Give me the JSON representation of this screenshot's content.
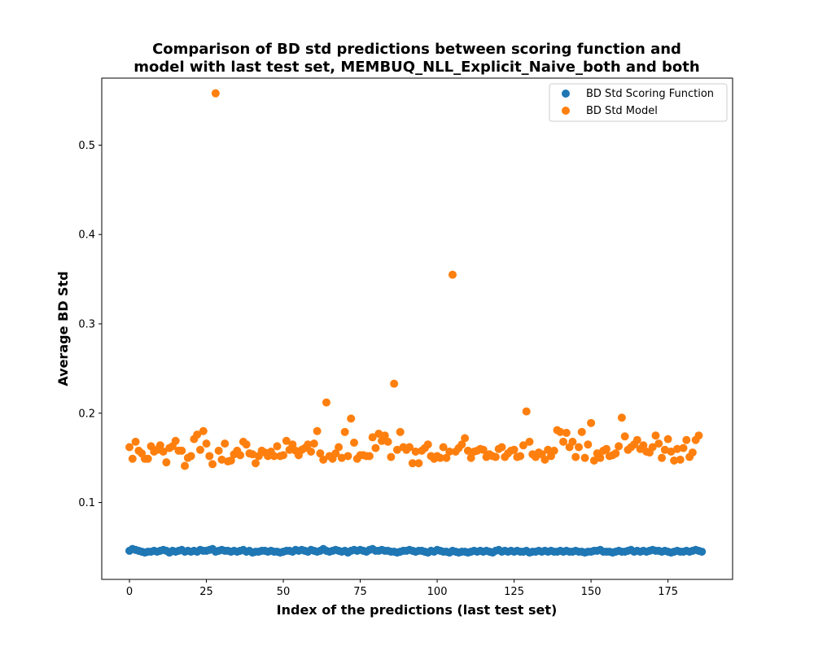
{
  "chart_data": {
    "type": "scatter",
    "title_lines": [
      "Comparison of BD std predictions between scoring function and",
      "model with last test set, MEMBUQ_NLL_Explicit_Naive_both and both"
    ],
    "xlabel": "Index of the predictions (last test set)",
    "ylabel": "Average BD Std",
    "xlim": [
      -9,
      196
    ],
    "ylim": [
      0.014,
      0.575
    ],
    "x_ticks": [
      0,
      25,
      50,
      75,
      100,
      125,
      150,
      175
    ],
    "y_ticks": [
      0.1,
      0.2,
      0.3,
      0.4,
      0.5
    ],
    "grid": false,
    "legend_position": "top-right",
    "series": [
      {
        "name": "BD Std Scoring Function",
        "color": "#1f77b4",
        "x_start": 0,
        "values": [
          0.046,
          0.048,
          0.047,
          0.046,
          0.045,
          0.044,
          0.045,
          0.045,
          0.046,
          0.045,
          0.046,
          0.047,
          0.046,
          0.044,
          0.046,
          0.045,
          0.046,
          0.047,
          0.045,
          0.046,
          0.045,
          0.046,
          0.045,
          0.047,
          0.046,
          0.046,
          0.047,
          0.048,
          0.045,
          0.046,
          0.047,
          0.046,
          0.046,
          0.045,
          0.046,
          0.045,
          0.046,
          0.047,
          0.045,
          0.046,
          0.044,
          0.045,
          0.045,
          0.046,
          0.046,
          0.045,
          0.046,
          0.045,
          0.045,
          0.044,
          0.045,
          0.046,
          0.046,
          0.045,
          0.047,
          0.046,
          0.047,
          0.046,
          0.045,
          0.047,
          0.046,
          0.045,
          0.046,
          0.048,
          0.046,
          0.045,
          0.046,
          0.047,
          0.046,
          0.045,
          0.046,
          0.044,
          0.046,
          0.047,
          0.046,
          0.047,
          0.046,
          0.045,
          0.047,
          0.048,
          0.046,
          0.046,
          0.047,
          0.046,
          0.046,
          0.045,
          0.045,
          0.044,
          0.045,
          0.046,
          0.046,
          0.047,
          0.046,
          0.045,
          0.046,
          0.046,
          0.045,
          0.044,
          0.046,
          0.045,
          0.047,
          0.046,
          0.045,
          0.045,
          0.044,
          0.046,
          0.045,
          0.044,
          0.045,
          0.045,
          0.044,
          0.045,
          0.046,
          0.045,
          0.046,
          0.045,
          0.046,
          0.045,
          0.044,
          0.046,
          0.047,
          0.045,
          0.046,
          0.045,
          0.046,
          0.045,
          0.046,
          0.045,
          0.045,
          0.046,
          0.044,
          0.045,
          0.045,
          0.046,
          0.045,
          0.046,
          0.045,
          0.046,
          0.045,
          0.045,
          0.046,
          0.045,
          0.046,
          0.045,
          0.045,
          0.046,
          0.045,
          0.045,
          0.044,
          0.045,
          0.045,
          0.046,
          0.046,
          0.047,
          0.045,
          0.045,
          0.045,
          0.044,
          0.045,
          0.046,
          0.045,
          0.045,
          0.046,
          0.047,
          0.045,
          0.046,
          0.045,
          0.046,
          0.045,
          0.046,
          0.047,
          0.046,
          0.046,
          0.045,
          0.046,
          0.045,
          0.044,
          0.045,
          0.046,
          0.045,
          0.045,
          0.046,
          0.045,
          0.046,
          0.047,
          0.046,
          0.045
        ]
      },
      {
        "name": "BD Std Model",
        "color": "#ff7f0e",
        "x_start": 0,
        "values": [
          0.162,
          0.149,
          0.168,
          0.158,
          0.155,
          0.149,
          0.149,
          0.163,
          0.157,
          0.159,
          0.164,
          0.157,
          0.145,
          0.161,
          0.163,
          0.169,
          0.158,
          0.158,
          0.141,
          0.15,
          0.152,
          0.171,
          0.176,
          0.159,
          0.18,
          0.166,
          0.152,
          0.143,
          0.558,
          0.158,
          0.148,
          0.166,
          0.146,
          0.147,
          0.154,
          0.158,
          0.153,
          0.168,
          0.165,
          0.155,
          0.154,
          0.144,
          0.152,
          0.158,
          0.156,
          0.152,
          0.157,
          0.152,
          0.163,
          0.152,
          0.153,
          0.169,
          0.159,
          0.165,
          0.158,
          0.153,
          0.159,
          0.161,
          0.165,
          0.157,
          0.166,
          0.18,
          0.155,
          0.148,
          0.212,
          0.152,
          0.149,
          0.155,
          0.162,
          0.15,
          0.179,
          0.152,
          0.194,
          0.167,
          0.149,
          0.153,
          0.153,
          0.152,
          0.152,
          0.173,
          0.161,
          0.177,
          0.169,
          0.175,
          0.168,
          0.151,
          0.233,
          0.159,
          0.179,
          0.162,
          0.159,
          0.162,
          0.144,
          0.157,
          0.144,
          0.158,
          0.161,
          0.165,
          0.152,
          0.149,
          0.152,
          0.15,
          0.162,
          0.15,
          0.157,
          0.355,
          0.157,
          0.161,
          0.165,
          0.172,
          0.158,
          0.15,
          0.157,
          0.158,
          0.16,
          0.159,
          0.151,
          0.154,
          0.152,
          0.151,
          0.16,
          0.162,
          0.151,
          0.155,
          0.158,
          0.159,
          0.151,
          0.152,
          0.164,
          0.202,
          0.168,
          0.154,
          0.151,
          0.156,
          0.154,
          0.148,
          0.159,
          0.152,
          0.158,
          0.181,
          0.179,
          0.168,
          0.178,
          0.162,
          0.168,
          0.151,
          0.162,
          0.179,
          0.15,
          0.165,
          0.189,
          0.147,
          0.155,
          0.15,
          0.158,
          0.16,
          0.152,
          0.153,
          0.155,
          0.163,
          0.195,
          0.174,
          0.159,
          0.162,
          0.165,
          0.17,
          0.16,
          0.164,
          0.157,
          0.156,
          0.162,
          0.175,
          0.166,
          0.15,
          0.159,
          0.171,
          0.157,
          0.147,
          0.16,
          0.148,
          0.161,
          0.17,
          0.151,
          0.156,
          0.17,
          0.175
        ]
      }
    ]
  }
}
